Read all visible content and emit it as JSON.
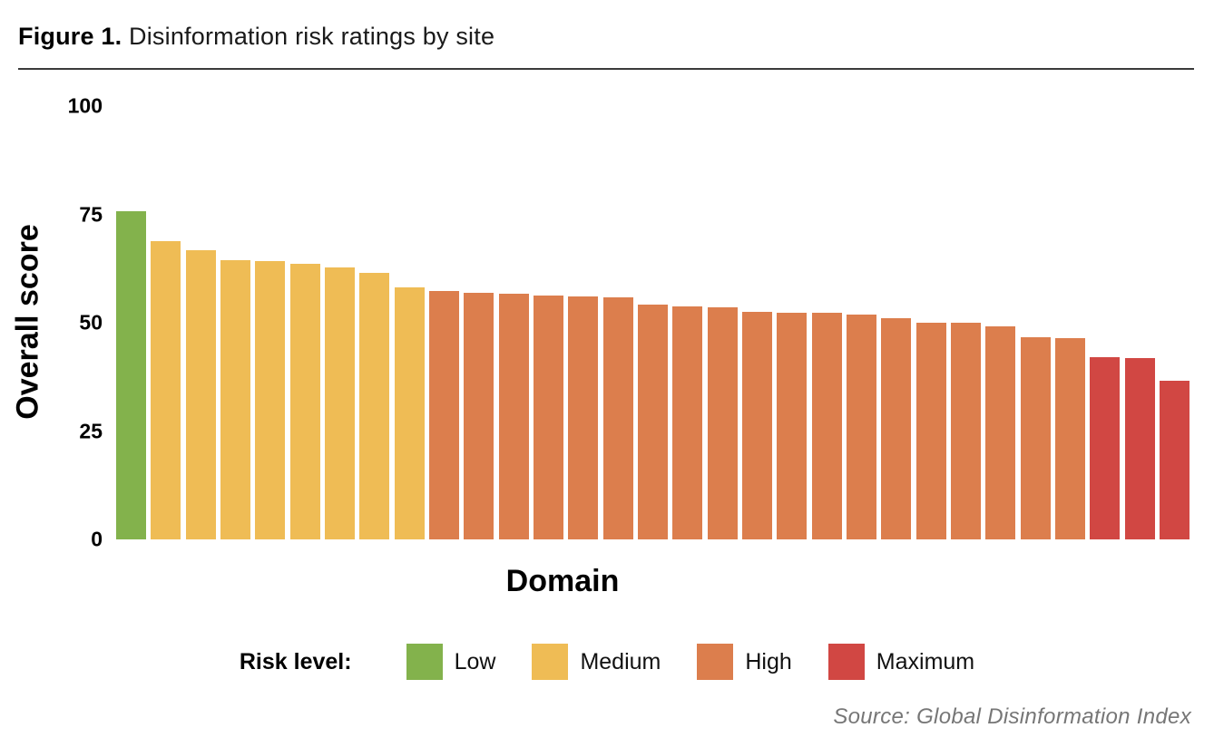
{
  "figure": {
    "label": "Figure 1.",
    "title": "Disinformation risk ratings by site",
    "source": "Source: Global Disinformation Index"
  },
  "chart_data": {
    "type": "bar",
    "title": "Figure 1. Disinformation risk ratings by site",
    "xlabel": "Domain",
    "ylabel": "Overall score",
    "ylim": [
      0,
      100
    ],
    "ytick_labels": [
      "100",
      "75",
      "50",
      "25",
      "0"
    ],
    "ytick_values": [
      100,
      75,
      50,
      25,
      0
    ],
    "grid": false,
    "bar_axis_labels": "none",
    "legend": {
      "title": "Risk level:",
      "position": "bottom",
      "items": [
        {
          "label": "Low",
          "color": "#83B24C"
        },
        {
          "label": "Medium",
          "color": "#EFBC55"
        },
        {
          "label": "High",
          "color": "#DC7E4D"
        },
        {
          "label": "Maximum",
          "color": "#D14743"
        }
      ]
    },
    "bars": [
      {
        "value": 75.8,
        "risk": "Low"
      },
      {
        "value": 68.9,
        "risk": "Medium"
      },
      {
        "value": 66.8,
        "risk": "Medium"
      },
      {
        "value": 64.5,
        "risk": "Medium"
      },
      {
        "value": 64.3,
        "risk": "Medium"
      },
      {
        "value": 63.7,
        "risk": "Medium"
      },
      {
        "value": 62.7,
        "risk": "Medium"
      },
      {
        "value": 61.6,
        "risk": "Medium"
      },
      {
        "value": 58.1,
        "risk": "Medium"
      },
      {
        "value": 57.4,
        "risk": "High"
      },
      {
        "value": 57.0,
        "risk": "High"
      },
      {
        "value": 56.6,
        "risk": "High"
      },
      {
        "value": 56.2,
        "risk": "High"
      },
      {
        "value": 56.0,
        "risk": "High"
      },
      {
        "value": 55.8,
        "risk": "High"
      },
      {
        "value": 54.1,
        "risk": "High"
      },
      {
        "value": 53.7,
        "risk": "High"
      },
      {
        "value": 53.5,
        "risk": "High"
      },
      {
        "value": 52.6,
        "risk": "High"
      },
      {
        "value": 52.4,
        "risk": "High"
      },
      {
        "value": 52.2,
        "risk": "High"
      },
      {
        "value": 51.9,
        "risk": "High"
      },
      {
        "value": 51.1,
        "risk": "High"
      },
      {
        "value": 50.1,
        "risk": "High"
      },
      {
        "value": 49.9,
        "risk": "High"
      },
      {
        "value": 49.2,
        "risk": "High"
      },
      {
        "value": 46.7,
        "risk": "High"
      },
      {
        "value": 46.5,
        "risk": "High"
      },
      {
        "value": 42.1,
        "risk": "Maximum"
      },
      {
        "value": 41.9,
        "risk": "Maximum"
      },
      {
        "value": 36.7,
        "risk": "Maximum"
      }
    ]
  },
  "decor": {
    "rule_color": "#3A3A3A",
    "source_text_color": "#767676"
  }
}
